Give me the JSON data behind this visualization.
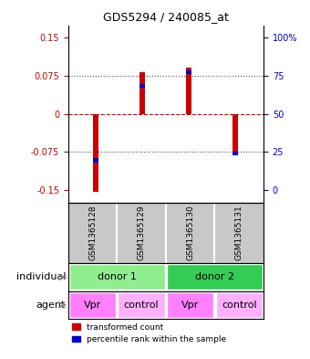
{
  "title": "GDS5294 / 240085_at",
  "samples": [
    "GSM1365128",
    "GSM1365129",
    "GSM1365130",
    "GSM1365131"
  ],
  "red_bars": [
    -0.155,
    0.082,
    0.092,
    -0.082
  ],
  "blue_markers": [
    -0.092,
    0.055,
    0.082,
    -0.078
  ],
  "ylim": [
    -0.175,
    0.175
  ],
  "yticks_left": [
    -0.15,
    -0.075,
    0,
    0.075,
    0.15
  ],
  "ytick_labels_left": [
    "-0.15",
    "-0.075",
    "0",
    "0.075",
    "0.15"
  ],
  "right_tick_labels": [
    "0",
    "25",
    "50",
    "75",
    "100%"
  ],
  "sample_bg_color": "#C8C8C8",
  "bar_color_red": "#CC0000",
  "bar_color_blue": "#0000CC",
  "dashed_zero_color": "#CC0000",
  "dotted_line_color": "#555555",
  "background_color": "#FFFFFF",
  "donor1_color": "#90EE90",
  "donor2_color": "#33CC55",
  "agent_vpr_color": "#FF80FF",
  "agent_ctrl_color": "#FFB0FF",
  "agent_labels": [
    "Vpr",
    "control",
    "Vpr",
    "control"
  ]
}
